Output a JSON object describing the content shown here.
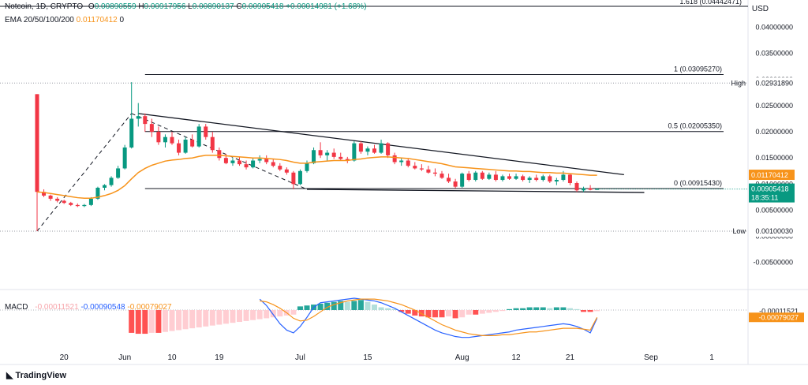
{
  "header": {
    "symbol": "Notcoin, 1D, CRYPTO",
    "ohlc": {
      "o_label": "O",
      "o": "0.00890559",
      "h_label": "H",
      "h": "0.00917956",
      "l_label": "L",
      "l": "0.00890137",
      "c_label": "C",
      "c": "0.00905418",
      "change": "+0.00014981 (+1.68%)"
    },
    "ema_label": "EMA 20/50/100/200",
    "ema_value": "0.01170412",
    "ema_extra": "0",
    "currency": "USD"
  },
  "macd_legend": {
    "label": "MACD",
    "hist": "-0.00011521",
    "macd": "-0.00090548",
    "signal": "-0.00079027"
  },
  "brand": "TradingView",
  "colors": {
    "up": "#089981",
    "down": "#f23645",
    "ema": "#f7931a",
    "macd_line": "#2962ff",
    "signal_line": "#f7931a",
    "hist_up": "#26a69a",
    "hist_down": "#ff5252"
  },
  "chart_data": {
    "type": "candlestick",
    "x_tick_labels": [
      "20",
      "Jun",
      "10",
      "19",
      "Jul",
      "15",
      "Aug",
      "12",
      "21",
      "Sep",
      "1"
    ],
    "x_tick_index": [
      4,
      13,
      20,
      27,
      39,
      49,
      63,
      71,
      79,
      91,
      100
    ],
    "y_tick_labels": [
      "0.04000000",
      "0.03500000",
      "0.03000000",
      "0.02500000",
      "0.02000000",
      "0.01500000",
      "0.01000000",
      "0.00500000",
      "0.00000000",
      "-0.00500000"
    ],
    "y_tick_values": [
      0.04,
      0.035,
      0.03,
      0.025,
      0.02,
      0.015,
      0.01,
      0.005,
      0.0,
      -0.005
    ],
    "ylim": [
      -0.007,
      0.044
    ],
    "candles": [
      [
        0.0272,
        0.0272,
        0.001,
        0.0085
      ],
      [
        0.0085,
        0.009,
        0.0075,
        0.0078
      ],
      [
        0.0078,
        0.008,
        0.0068,
        0.0072
      ],
      [
        0.0072,
        0.0075,
        0.0065,
        0.0068
      ],
      [
        0.0068,
        0.007,
        0.0062,
        0.0064
      ],
      [
        0.0064,
        0.0066,
        0.0058,
        0.006
      ],
      [
        0.006,
        0.0063,
        0.0056,
        0.0058
      ],
      [
        0.0058,
        0.0062,
        0.0056,
        0.006
      ],
      [
        0.006,
        0.0075,
        0.0058,
        0.0072
      ],
      [
        0.0072,
        0.0095,
        0.007,
        0.0093
      ],
      [
        0.0093,
        0.01,
        0.0088,
        0.0098
      ],
      [
        0.0098,
        0.0115,
        0.0095,
        0.0112
      ],
      [
        0.0112,
        0.0135,
        0.011,
        0.013
      ],
      [
        0.013,
        0.0175,
        0.0128,
        0.017
      ],
      [
        0.017,
        0.0295,
        0.0168,
        0.0225
      ],
      [
        0.0225,
        0.0255,
        0.021,
        0.023
      ],
      [
        0.023,
        0.0235,
        0.02,
        0.0215
      ],
      [
        0.0215,
        0.0225,
        0.019,
        0.02
      ],
      [
        0.02,
        0.021,
        0.0175,
        0.018
      ],
      [
        0.018,
        0.0195,
        0.017,
        0.019
      ],
      [
        0.019,
        0.02,
        0.0175,
        0.0178
      ],
      [
        0.0178,
        0.0185,
        0.0155,
        0.016
      ],
      [
        0.016,
        0.019,
        0.0158,
        0.0185
      ],
      [
        0.0185,
        0.0195,
        0.017,
        0.0172
      ],
      [
        0.0172,
        0.0215,
        0.017,
        0.021
      ],
      [
        0.021,
        0.0215,
        0.0185,
        0.019
      ],
      [
        0.019,
        0.02,
        0.016,
        0.0165
      ],
      [
        0.0165,
        0.017,
        0.0145,
        0.015
      ],
      [
        0.015,
        0.0158,
        0.0138,
        0.014
      ],
      [
        0.014,
        0.015,
        0.0135,
        0.0145
      ],
      [
        0.0145,
        0.0152,
        0.0135,
        0.0138
      ],
      [
        0.0138,
        0.0145,
        0.0128,
        0.0132
      ],
      [
        0.0132,
        0.015,
        0.013,
        0.0145
      ],
      [
        0.0145,
        0.0155,
        0.014,
        0.0148
      ],
      [
        0.0148,
        0.0155,
        0.0138,
        0.0142
      ],
      [
        0.0142,
        0.0148,
        0.0132,
        0.0135
      ],
      [
        0.0135,
        0.014,
        0.0125,
        0.0128
      ],
      [
        0.0128,
        0.0132,
        0.0118,
        0.0122
      ],
      [
        0.0122,
        0.0125,
        0.009,
        0.01
      ],
      [
        0.01,
        0.0128,
        0.0098,
        0.0125
      ],
      [
        0.0125,
        0.0145,
        0.0122,
        0.014
      ],
      [
        0.014,
        0.017,
        0.0138,
        0.0165
      ],
      [
        0.0165,
        0.018,
        0.015,
        0.0155
      ],
      [
        0.0155,
        0.0165,
        0.0145,
        0.016
      ],
      [
        0.016,
        0.0168,
        0.0148,
        0.0152
      ],
      [
        0.0152,
        0.016,
        0.0145,
        0.0148
      ],
      [
        0.0148,
        0.0152,
        0.014,
        0.0145
      ],
      [
        0.0145,
        0.0182,
        0.0143,
        0.0178
      ],
      [
        0.0178,
        0.0182,
        0.0158,
        0.0162
      ],
      [
        0.0162,
        0.0172,
        0.0155,
        0.0168
      ],
      [
        0.0168,
        0.0175,
        0.0158,
        0.016
      ],
      [
        0.016,
        0.0185,
        0.0158,
        0.0178
      ],
      [
        0.0178,
        0.018,
        0.015,
        0.0155
      ],
      [
        0.0155,
        0.016,
        0.0138,
        0.0142
      ],
      [
        0.0142,
        0.015,
        0.0135,
        0.0145
      ],
      [
        0.0145,
        0.0148,
        0.0132,
        0.0135
      ],
      [
        0.0135,
        0.0142,
        0.0128,
        0.013
      ],
      [
        0.013,
        0.0138,
        0.0125,
        0.0128
      ],
      [
        0.0128,
        0.0135,
        0.012,
        0.0122
      ],
      [
        0.0122,
        0.013,
        0.0115,
        0.012
      ],
      [
        0.012,
        0.0125,
        0.011,
        0.0112
      ],
      [
        0.0112,
        0.012,
        0.0102,
        0.0105
      ],
      [
        0.0105,
        0.011,
        0.0092,
        0.0095
      ],
      [
        0.0095,
        0.0122,
        0.0093,
        0.012
      ],
      [
        0.012,
        0.0125,
        0.0105,
        0.0108
      ],
      [
        0.0108,
        0.0125,
        0.0105,
        0.0122
      ],
      [
        0.0122,
        0.0125,
        0.0108,
        0.011
      ],
      [
        0.011,
        0.0122,
        0.0108,
        0.0118
      ],
      [
        0.0118,
        0.0125,
        0.0105,
        0.0108
      ],
      [
        0.0108,
        0.0118,
        0.0105,
        0.0115
      ],
      [
        0.0115,
        0.012,
        0.0108,
        0.011
      ],
      [
        0.011,
        0.012,
        0.0108,
        0.0115
      ],
      [
        0.0115,
        0.0118,
        0.0105,
        0.0108
      ],
      [
        0.0108,
        0.0115,
        0.0102,
        0.0112
      ],
      [
        0.0112,
        0.0118,
        0.0105,
        0.0108
      ],
      [
        0.0108,
        0.0118,
        0.0105,
        0.0115
      ],
      [
        0.0115,
        0.0118,
        0.0102,
        0.0105
      ],
      [
        0.0105,
        0.0112,
        0.0098,
        0.0108
      ],
      [
        0.0108,
        0.0125,
        0.0105,
        0.0118
      ],
      [
        0.0118,
        0.012,
        0.0098,
        0.0102
      ],
      [
        0.0102,
        0.0105,
        0.0085,
        0.0088
      ],
      [
        0.0088,
        0.0095,
        0.0085,
        0.0092
      ],
      [
        0.0092,
        0.0098,
        0.0088,
        0.0089
      ],
      [
        0.0089,
        0.0092,
        0.0089,
        0.0091
      ]
    ],
    "ema": [
      0.0085,
      0.0084,
      0.0082,
      0.008,
      0.0078,
      0.0076,
      0.0074,
      0.0073,
      0.0073,
      0.0075,
      0.0078,
      0.0082,
      0.0088,
      0.0097,
      0.011,
      0.0122,
      0.013,
      0.0136,
      0.014,
      0.0144,
      0.0146,
      0.0147,
      0.0149,
      0.015,
      0.0153,
      0.0155,
      0.0155,
      0.0155,
      0.0154,
      0.0153,
      0.0152,
      0.0151,
      0.015,
      0.015,
      0.0149,
      0.0148,
      0.0147,
      0.0145,
      0.0142,
      0.014,
      0.014,
      0.0142,
      0.0143,
      0.0144,
      0.0145,
      0.0145,
      0.0145,
      0.0147,
      0.0148,
      0.015,
      0.0151,
      0.0152,
      0.0152,
      0.0151,
      0.015,
      0.0149,
      0.0147,
      0.0145,
      0.0143,
      0.0141,
      0.0139,
      0.0136,
      0.0133,
      0.0132,
      0.0131,
      0.013,
      0.0129,
      0.0128,
      0.0127,
      0.0126,
      0.0125,
      0.0125,
      0.0124,
      0.0124,
      0.0123,
      0.0122,
      0.0122,
      0.0121,
      0.0121,
      0.012,
      0.0119,
      0.0118,
      0.0117,
      0.0117
    ],
    "fib_levels": [
      {
        "label": "1 (0.03095270)",
        "value": 0.0309527
      },
      {
        "label": "0.5 (0.02005350)",
        "value": 0.0200535
      },
      {
        "label": "0 (0.00915430)",
        "value": 0.0091543
      }
    ],
    "top_fib_label": "1.618 (0.04442471)",
    "high": {
      "label": "High",
      "value": 0.0293189,
      "text": "0.02931890"
    },
    "low": {
      "label": "Low",
      "value": 0.0010003,
      "text": "0.00100030"
    },
    "price_tags": [
      {
        "text": "0.01170412",
        "value": 0.01170412,
        "color": "#f7931a"
      },
      {
        "text": "0.00905418",
        "value": 0.00905418,
        "color": "#089981",
        "sub": "18:35:11"
      }
    ],
    "trendlines": [
      {
        "from": [
          15,
          0.0235
        ],
        "to": [
          87,
          0.0118
        ]
      },
      {
        "from": [
          40,
          0.009
        ],
        "to": [
          90,
          0.0084
        ]
      }
    ],
    "macd": {
      "hist": [
        0.0,
        0.0,
        0.0,
        0.0,
        0.0,
        0.0,
        0.0,
        0.0,
        0.0,
        0.0,
        0.0,
        0.0,
        0.0,
        0.0,
        -0.0025,
        -0.0026,
        -0.0026,
        -0.0025,
        -0.0025,
        -0.0024,
        -0.0023,
        -0.0022,
        -0.0021,
        -0.002,
        -0.0019,
        -0.0018,
        -0.0017,
        -0.0016,
        -0.0015,
        -0.0014,
        -0.0013,
        -0.0012,
        -0.0011,
        -0.001,
        -0.0009,
        -0.0008,
        -0.0007,
        -0.0006,
        -0.0005,
        0.0004,
        0.0005,
        0.0006,
        0.0007,
        0.0008,
        0.0009,
        0.001,
        0.0009,
        0.001,
        0.0011,
        0.0009,
        0.0006,
        0.0003,
        0.0002,
        0.0001,
        -0.0002,
        -0.0004,
        -0.0006,
        -0.0007,
        -0.0008,
        -0.0008,
        -0.0008,
        -0.0007,
        -0.0009,
        -0.0008,
        -0.0005,
        -0.0005,
        -0.0004,
        -0.0003,
        -0.0002,
        -0.0001,
        0.0001,
        0.0002,
        0.0002,
        0.0003,
        0.0003,
        0.0003,
        0.0002,
        0.0003,
        0.0003,
        0.0002,
        0.0001,
        -0.0002,
        -0.0002,
        -0.00012
      ],
      "macd_line": [
        null,
        null,
        null,
        null,
        null,
        null,
        null,
        null,
        null,
        null,
        null,
        null,
        null,
        null,
        null,
        null,
        null,
        null,
        null,
        null,
        null,
        null,
        null,
        null,
        null,
        null,
        null,
        null,
        null,
        null,
        null,
        null,
        null,
        0.0012,
        0.0005,
        -0.0005,
        -0.0015,
        -0.0022,
        -0.0025,
        -0.0018,
        -0.0008,
        0.0003,
        0.0008,
        0.0009,
        0.001,
        0.0011,
        0.0012,
        0.0013,
        0.0012,
        0.0011,
        0.001,
        0.0008,
        0.0005,
        0.0002,
        -0.0002,
        -0.0006,
        -0.001,
        -0.0014,
        -0.0018,
        -0.0022,
        -0.0025,
        -0.0027,
        -0.0029,
        -0.003,
        -0.003,
        -0.0029,
        -0.0028,
        -0.0027,
        -0.0026,
        -0.0025,
        -0.0024,
        -0.0022,
        -0.0021,
        -0.002,
        -0.0019,
        -0.0018,
        -0.0017,
        -0.0016,
        -0.0015,
        -0.0016,
        -0.0018,
        -0.0021,
        -0.0025,
        -0.0009
      ],
      "signal_line": [
        null,
        null,
        null,
        null,
        null,
        null,
        null,
        null,
        null,
        null,
        null,
        null,
        null,
        null,
        null,
        null,
        null,
        null,
        null,
        null,
        null,
        null,
        null,
        null,
        null,
        null,
        null,
        null,
        null,
        null,
        null,
        null,
        null,
        0.001,
        0.0009,
        0.0006,
        0.0002,
        -0.0003,
        -0.0009,
        -0.0012,
        -0.0011,
        -0.0007,
        -0.0002,
        0.0003,
        0.0006,
        0.0008,
        0.001,
        0.0011,
        0.0012,
        0.0012,
        0.0012,
        0.0011,
        0.001,
        0.0008,
        0.0006,
        0.0003,
        0.0,
        -0.0004,
        -0.0008,
        -0.0012,
        -0.0016,
        -0.0019,
        -0.0022,
        -0.0024,
        -0.0026,
        -0.0027,
        -0.0028,
        -0.0028,
        -0.0028,
        -0.0027,
        -0.0027,
        -0.0026,
        -0.0025,
        -0.0024,
        -0.0024,
        -0.0023,
        -0.0022,
        -0.0021,
        -0.002,
        -0.002,
        -0.002,
        -0.0021,
        -0.0022,
        -0.0008
      ]
    }
  }
}
